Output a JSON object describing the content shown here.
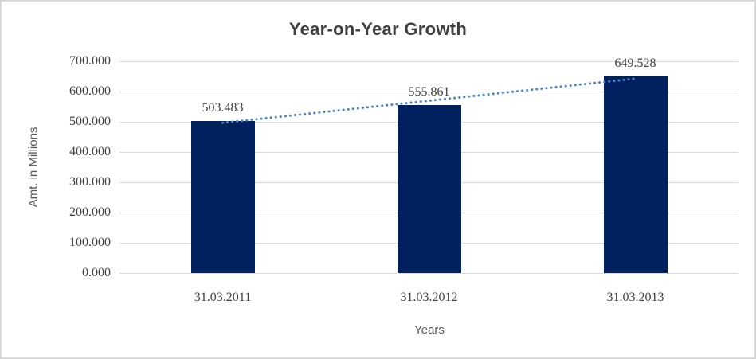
{
  "colors": {
    "background": "#ffffff",
    "frame_border": "#d9d9d9",
    "gridline": "#d9d9d9",
    "bar": "#002060",
    "trendline": "#4a87c8",
    "title_text": "#3f3f3f",
    "tick_text": "#404040",
    "axis_title_text": "#595959"
  },
  "chart_data": {
    "type": "bar",
    "title": "Year-on-Year Growth",
    "categories": [
      "31.03.2011",
      "31.03.2012",
      "31.03.2013"
    ],
    "values": [
      503.483,
      555.861,
      649.528
    ],
    "data_labels": [
      "503.483",
      "555.861",
      "649.528"
    ],
    "xlabel": "Years",
    "ylabel": "Amt. in Millions",
    "ylim": [
      0,
      700
    ],
    "ytick_step": 100,
    "ytick_labels": [
      "0.000",
      "100.000",
      "200.000",
      "300.000",
      "400.000",
      "500.000",
      "600.000",
      "700.000"
    ],
    "grid": true,
    "legend": "none",
    "bar_color": "#002060",
    "trendline": {
      "type": "linear",
      "style": "dotted",
      "color": "#4a87c8"
    }
  }
}
